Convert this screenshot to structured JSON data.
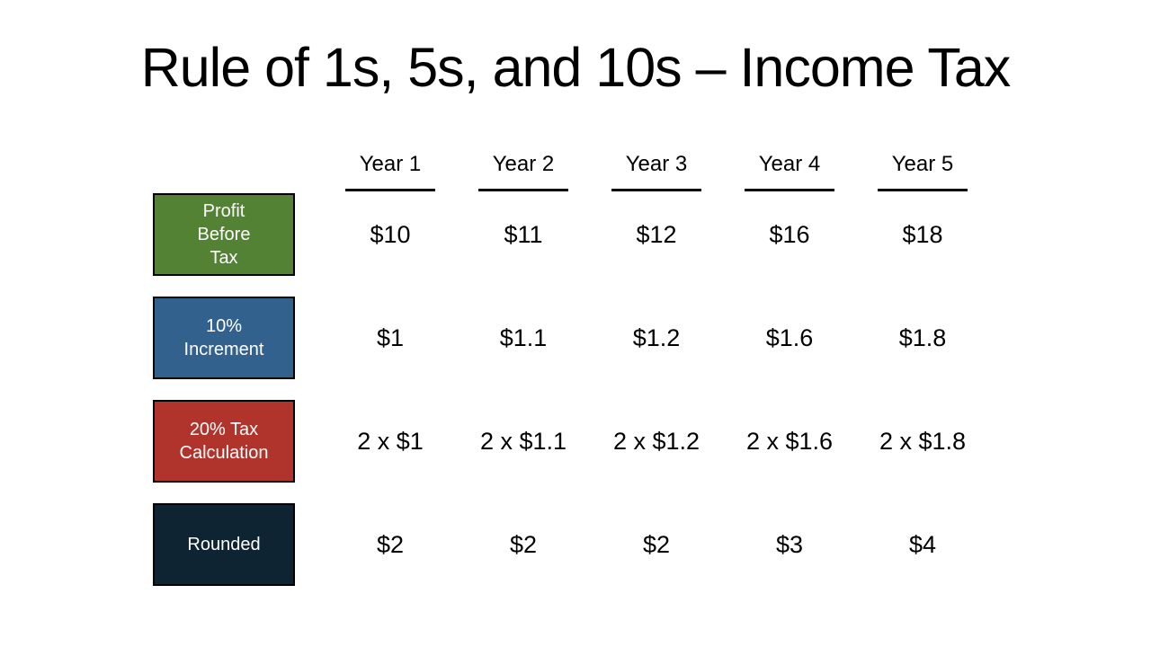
{
  "slide": {
    "title": "Rule of 1s, 5s, and 10s – Income Tax",
    "background_color": "#ffffff",
    "text_color": "#000000"
  },
  "table": {
    "columns": [
      "Year 1",
      "Year 2",
      "Year 3",
      "Year 4",
      "Year 5"
    ],
    "label_text_color": "#ffffff",
    "box_border_color": "#000000",
    "rows": [
      {
        "name": "Profit Before Tax",
        "label_lines": [
          "Profit",
          "Before",
          "Tax"
        ],
        "color": "#548235",
        "values": [
          "$10",
          "$11",
          "$12",
          "$16",
          "$18"
        ]
      },
      {
        "name": "10% Increment",
        "label_lines": [
          "10%",
          "Increment"
        ],
        "color": "#33618E",
        "values": [
          "$1",
          "$1.1",
          "$1.2",
          "$1.6",
          "$1.8"
        ]
      },
      {
        "name": "20% Tax Calculation",
        "label_lines": [
          "20% Tax",
          "Calculation"
        ],
        "color": "#B0342C",
        "values": [
          "2 x $1",
          "2 x $1.1",
          "2 x $1.2",
          "2 x $1.6",
          "2 x $1.8"
        ]
      },
      {
        "name": "Rounded",
        "label_lines": [
          "Rounded"
        ],
        "color": "#0E2433",
        "values": [
          "$2",
          "$2",
          "$2",
          "$3",
          "$4"
        ]
      }
    ]
  }
}
